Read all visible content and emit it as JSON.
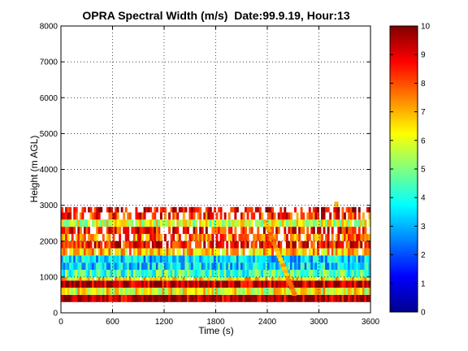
{
  "chart_data": {
    "type": "heatmap",
    "title": "OPRA Spectral Width (m/s)  Date:99.9.19, Hour:13",
    "xlabel": "Time (s)",
    "ylabel": "Height (m AGL)",
    "xlim": [
      0,
      3600
    ],
    "ylim": [
      0,
      8000
    ],
    "x_ticks": [
      "0",
      "600",
      "1200",
      "1800",
      "2400",
      "3000",
      "3600"
    ],
    "y_ticks": [
      "0",
      "1000",
      "2000",
      "3000",
      "4000",
      "5000",
      "6000",
      "7000",
      "8000"
    ],
    "grid": true,
    "colorbar": {
      "range": [
        0,
        10
      ],
      "ticks": [
        "0",
        "1",
        "2",
        "3",
        "4",
        "5",
        "6",
        "7",
        "8",
        "9",
        "10"
      ],
      "colormap": "jet",
      "colors": [
        "#00008f",
        "#0000ff",
        "#0080ff",
        "#00ffff",
        "#80ff80",
        "#ffff00",
        "#ff8000",
        "#ff0000",
        "#800000"
      ]
    },
    "bands": [
      {
        "y": [
          300,
          500
        ],
        "value": 9.6,
        "gaps": 0.0
      },
      {
        "y": [
          500,
          700
        ],
        "value": 6.2,
        "gaps": 0.0
      },
      {
        "y": [
          700,
          900
        ],
        "value": 9.5,
        "gaps": 0.0
      },
      {
        "y": [
          900,
          1000
        ],
        "value": 6.5,
        "gaps": 0.05
      },
      {
        "y": [
          1000,
          1200
        ],
        "value": 4.5,
        "gaps": 0.0
      },
      {
        "y": [
          1200,
          1400
        ],
        "value": 3.5,
        "gaps": 0.0
      },
      {
        "y": [
          1400,
          1600
        ],
        "value": 3.3,
        "gaps": 0.0
      },
      {
        "y": [
          1600,
          1800
        ],
        "value": 6.8,
        "gaps": 0.1
      },
      {
        "y": [
          1800,
          2000
        ],
        "value": 8.6,
        "gaps": 0.25
      },
      {
        "y": [
          2000,
          2200
        ],
        "value": 7.8,
        "gaps": 0.35
      },
      {
        "y": [
          2200,
          2400
        ],
        "value": 8.8,
        "gaps": 0.3
      },
      {
        "y": [
          2400,
          2600
        ],
        "value": 5.8,
        "gaps": 0.08
      },
      {
        "y": [
          2600,
          2800
        ],
        "value": 8.4,
        "gaps": 0.45
      },
      {
        "y": [
          2800,
          2950
        ],
        "value": 9.2,
        "gaps": 0.4
      }
    ],
    "tilted_feature": {
      "x_start": 2350,
      "x_end": 2700,
      "y_start": 2600,
      "y_end": 500,
      "value": 7.2
    },
    "spike": {
      "x": 3180,
      "y_top": 3100,
      "y_bottom": 2950,
      "value": 7.0
    }
  }
}
